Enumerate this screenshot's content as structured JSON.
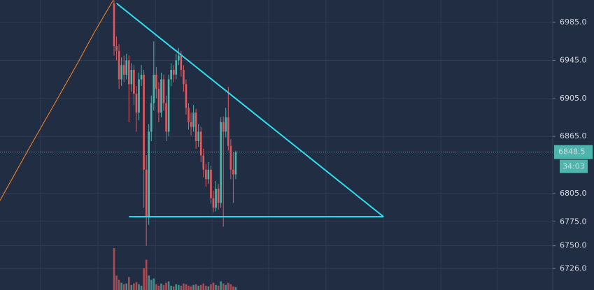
{
  "chart_data": {
    "type": "candlestick",
    "ylim": [
      6703.4,
      7008.5
    ],
    "yticks": [
      {
        "value": 6985,
        "label": "6985.0"
      },
      {
        "value": 6945,
        "label": "6945.0"
      },
      {
        "value": 6905,
        "label": "6905.0"
      },
      {
        "value": 6865,
        "label": "6865.0"
      },
      {
        "value": 6805,
        "label": "6805.0"
      },
      {
        "value": 6775,
        "label": "6775.0"
      },
      {
        "value": 6750,
        "label": "6750.0"
      },
      {
        "value": 6726,
        "label": "6726.0"
      }
    ],
    "grid": true,
    "up_color": "#4db6ac",
    "down_color": "#e5575c",
    "open": [
      7005,
      6960,
      6955,
      6925,
      6940,
      6930,
      6945,
      6920,
      6935,
      6910,
      6890,
      6925,
      6930,
      6830,
      6780,
      6870,
      6900,
      6930,
      6915,
      6890,
      6925,
      6900,
      6870,
      6925,
      6935,
      6930,
      6945,
      6950,
      6935,
      6920,
      6895,
      6880,
      6875,
      6890,
      6860,
      6870,
      6845,
      6830,
      6820,
      6830,
      6800,
      6790,
      6810,
      6795,
      6880,
      6870,
      6885,
      6855,
      6830,
      6825
    ],
    "high": [
      7008,
      6970,
      6962,
      6948,
      6950,
      6952,
      6950,
      6942,
      6940,
      6918,
      6932,
      6940,
      6935,
      6845,
      6878,
      6908,
      6965,
      6938,
      6922,
      6932,
      6930,
      6908,
      6930,
      6942,
      6940,
      6952,
      6958,
      6955,
      6940,
      6925,
      6900,
      6890,
      6898,
      6894,
      6878,
      6875,
      6852,
      6836,
      6838,
      6834,
      6808,
      6818,
      6815,
      6885,
      6886,
      6895,
      6917,
      6862,
      6848,
      6850
    ],
    "low": [
      6950,
      6945,
      6915,
      6918,
      6922,
      6925,
      6880,
      6912,
      6898,
      6870,
      6882,
      6918,
      6790,
      6750,
      6772,
      6860,
      6892,
      6905,
      6880,
      6885,
      6892,
      6860,
      6865,
      6918,
      6922,
      6925,
      6940,
      6928,
      6912,
      6888,
      6872,
      6866,
      6870,
      6852,
      6854,
      6838,
      6822,
      6812,
      6815,
      6794,
      6785,
      6786,
      6788,
      6790,
      6770,
      6864,
      6850,
      6820,
      6795,
      6820
    ],
    "close": [
      6960,
      6955,
      6925,
      6940,
      6930,
      6945,
      6920,
      6935,
      6910,
      6890,
      6925,
      6930,
      6830,
      6780,
      6870,
      6900,
      6930,
      6915,
      6890,
      6925,
      6900,
      6870,
      6925,
      6935,
      6930,
      6945,
      6950,
      6935,
      6920,
      6895,
      6880,
      6875,
      6890,
      6860,
      6870,
      6845,
      6830,
      6820,
      6830,
      6800,
      6790,
      6810,
      6795,
      6880,
      6870,
      6885,
      6855,
      6830,
      6825,
      6848.5
    ],
    "volume": [
      58,
      20,
      14,
      10,
      8,
      9,
      18,
      7,
      9,
      11,
      8,
      6,
      30,
      42,
      20,
      14,
      16,
      8,
      6,
      9,
      7,
      10,
      12,
      6,
      5,
      8,
      7,
      6,
      9,
      8,
      6,
      5,
      7,
      8,
      6,
      7,
      9,
      6,
      5,
      8,
      10,
      7,
      6,
      12,
      9,
      7,
      10,
      8,
      5,
      4
    ],
    "last_price_label": "6848.5",
    "countdown": "34:03",
    "trend_line_color": "#2fe0ee",
    "trend_lines": [
      [
        [
          1,
          7005
        ],
        [
          108.5,
          6780.5
        ]
      ],
      [
        [
          6,
          6780.5
        ],
        [
          108.5,
          6780.5
        ]
      ]
    ]
  }
}
